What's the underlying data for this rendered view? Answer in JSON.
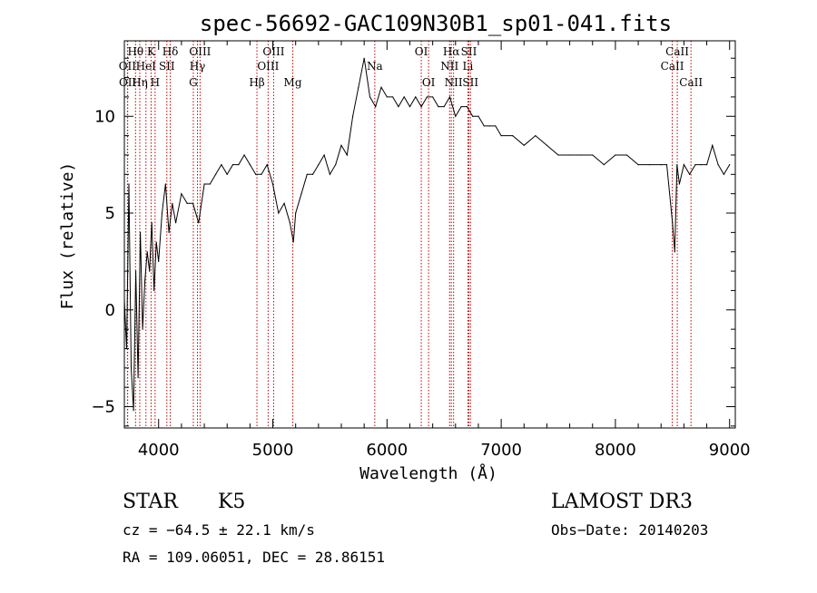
{
  "chart_data": {
    "type": "line",
    "title": "spec-56692-GAC109N30B1_sp01-041.fits",
    "xlabel": "Wavelength (Å)",
    "ylabel": "Flux (relative)",
    "xlim": [
      3700,
      9050
    ],
    "ylim": [
      -6.1,
      13.9
    ],
    "xticks": [
      4000,
      5000,
      6000,
      7000,
      8000,
      9000
    ],
    "yticks": [
      -5,
      0,
      5,
      10
    ],
    "series": [
      {
        "name": "flux",
        "x": [
          3700,
          3720,
          3740,
          3760,
          3780,
          3800,
          3820,
          3840,
          3860,
          3880,
          3900,
          3920,
          3940,
          3960,
          3980,
          4000,
          4030,
          4060,
          4090,
          4120,
          4150,
          4200,
          4250,
          4300,
          4350,
          4400,
          4450,
          4500,
          4550,
          4600,
          4650,
          4700,
          4750,
          4800,
          4850,
          4900,
          4950,
          5000,
          5050,
          5100,
          5150,
          5180,
          5200,
          5250,
          5300,
          5350,
          5400,
          5450,
          5500,
          5550,
          5600,
          5650,
          5700,
          5750,
          5800,
          5850,
          5900,
          5950,
          6000,
          6050,
          6100,
          6150,
          6200,
          6250,
          6300,
          6350,
          6400,
          6450,
          6500,
          6550,
          6600,
          6650,
          6700,
          6750,
          6800,
          6850,
          6900,
          6950,
          7000,
          7100,
          7200,
          7300,
          7400,
          7500,
          7600,
          7700,
          7800,
          7900,
          8000,
          8100,
          8200,
          8300,
          8400,
          8450,
          8500,
          8520,
          8540,
          8560,
          8600,
          8650,
          8700,
          8750,
          8800,
          8850,
          8900,
          8950,
          9000
        ],
        "y": [
          0.5,
          -2.0,
          6.5,
          -3.0,
          -5.2,
          2.0,
          -3.5,
          4.0,
          -1.0,
          1.5,
          3.0,
          2.0,
          4.5,
          1.0,
          3.5,
          2.5,
          5.0,
          6.5,
          4.0,
          5.5,
          4.5,
          6.0,
          5.5,
          5.5,
          4.5,
          6.5,
          6.5,
          7.0,
          7.5,
          7.0,
          7.5,
          7.5,
          8.0,
          7.5,
          7.0,
          7.0,
          7.5,
          6.5,
          5.0,
          5.5,
          4.5,
          3.5,
          5.0,
          6.0,
          7.0,
          7.0,
          7.5,
          8.0,
          7.0,
          7.5,
          8.5,
          8.0,
          10.0,
          11.5,
          13.0,
          11.0,
          10.5,
          11.5,
          11.0,
          11.0,
          10.5,
          11.0,
          10.5,
          11.0,
          10.5,
          11.0,
          11.0,
          10.5,
          10.5,
          11.0,
          10.0,
          10.5,
          10.5,
          10.0,
          10.0,
          9.5,
          9.5,
          9.5,
          9.0,
          9.0,
          8.5,
          9.0,
          8.5,
          8.0,
          8.0,
          8.0,
          8.0,
          7.5,
          8.0,
          8.0,
          7.5,
          7.5,
          7.5,
          7.5,
          4.5,
          3.0,
          7.5,
          6.5,
          7.5,
          7.0,
          7.5,
          7.5,
          7.5,
          8.5,
          7.5,
          7.0,
          7.5
        ]
      }
    ],
    "lines": [
      {
        "label": "Hθ",
        "wave": 3798,
        "row": 1
      },
      {
        "label": "OII",
        "wave": 3727,
        "row": 2
      },
      {
        "label": "OII",
        "wave": 3729,
        "row": 3
      },
      {
        "label": "Hη",
        "wave": 3835,
        "row": 3
      },
      {
        "label": "HeI",
        "wave": 3889,
        "row": 2
      },
      {
        "label": "K",
        "wave": 3934,
        "row": 1
      },
      {
        "label": "H",
        "wave": 3969,
        "row": 3
      },
      {
        "label": "SII",
        "wave": 4072,
        "row": 2
      },
      {
        "label": "Hδ",
        "wave": 4102,
        "row": 1
      },
      {
        "label": "OIII",
        "wave": 4363,
        "row": 1
      },
      {
        "label": "Hγ",
        "wave": 4340,
        "row": 2
      },
      {
        "label": "G",
        "wave": 4304,
        "row": 3
      },
      {
        "label": "Hβ",
        "wave": 4861,
        "row": 3
      },
      {
        "label": "OIII",
        "wave": 5007,
        "row": 1
      },
      {
        "label": "OIII",
        "wave": 4959,
        "row": 2
      },
      {
        "label": "Mg",
        "wave": 5175,
        "row": 3
      },
      {
        "label": "Na",
        "wave": 5893,
        "row": 2
      },
      {
        "label": "OI",
        "wave": 6300,
        "row": 1
      },
      {
        "label": "OI",
        "wave": 6364,
        "row": 3
      },
      {
        "label": "Hα",
        "wave": 6563,
        "row": 1
      },
      {
        "label": "NII",
        "wave": 6548,
        "row": 2
      },
      {
        "label": "NII",
        "wave": 6583,
        "row": 3
      },
      {
        "label": "SII",
        "wave": 6717,
        "row": 1
      },
      {
        "label": "Li",
        "wave": 6708,
        "row": 2
      },
      {
        "label": "SII",
        "wave": 6731,
        "row": 3
      },
      {
        "label": "CaII",
        "wave": 8542,
        "row": 1
      },
      {
        "label": "CaII",
        "wave": 8498,
        "row": 2
      },
      {
        "label": "CaII",
        "wave": 8662,
        "row": 3
      }
    ]
  },
  "info": {
    "object_class": "STAR",
    "subclass": "K5",
    "survey": "LAMOST DR3",
    "cz": "cz = −64.5 ± 22.1 km/s",
    "obs_date": "Obs−Date: 20140203",
    "coords": "RA = 109.06051, DEC =  28.86151"
  }
}
